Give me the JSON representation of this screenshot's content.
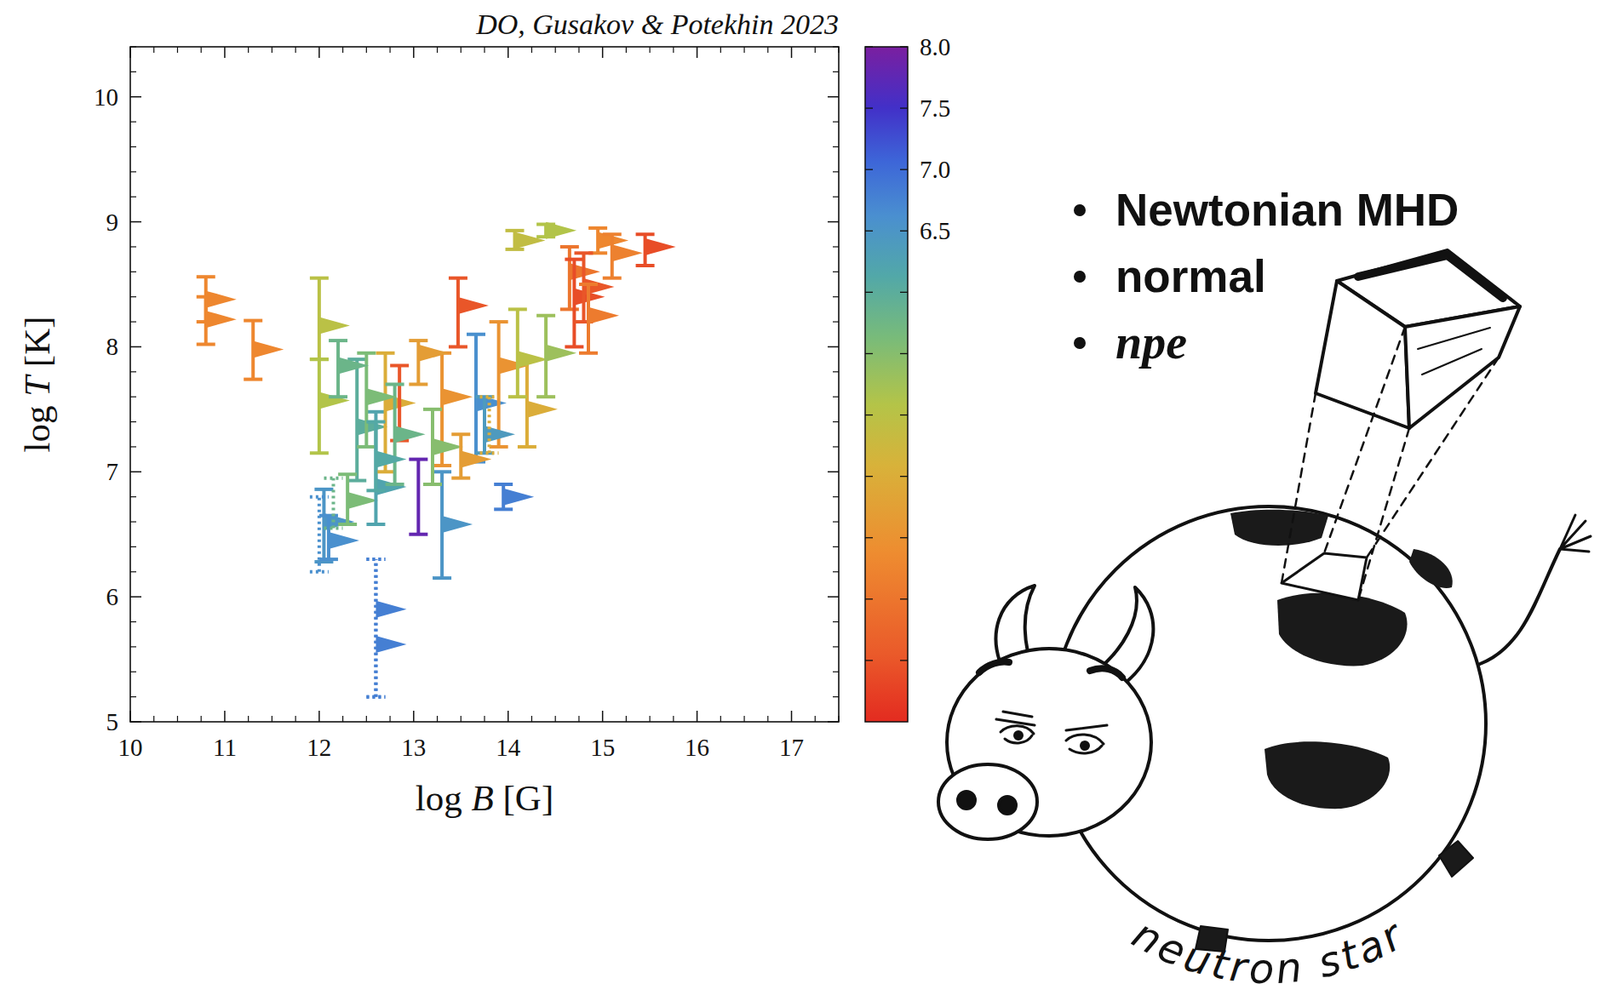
{
  "chart_data": {
    "type": "scatter",
    "title": "DO, Gusakov & Potekhin 2023",
    "x_label": "log B [G]",
    "y_label": "log T [K]",
    "xlim": [
      10,
      17.5
    ],
    "ylim": [
      5,
      10.4
    ],
    "xticks": [
      10,
      11,
      12,
      13,
      14,
      15,
      16,
      17
    ],
    "yticks": [
      5,
      6,
      7,
      8,
      9,
      10
    ],
    "marker": "triangle",
    "colorbar": {
      "range": [
        2.5,
        8
      ],
      "ticks": [
        6.5,
        {
          "value": 7,
          "label": "7.0"
        },
        7.5,
        {
          "value": 8,
          "label": "8.0"
        }
      ],
      "minor_ticks": [
        3,
        3.5,
        4,
        4.5,
        5,
        5.5,
        6
      ]
    },
    "series": [
      {
        "line_style": "solid",
        "x": [
          10.8,
          10.8,
          11.3,
          12.0,
          12.0,
          12.05,
          12.1,
          12.4,
          12.3,
          12.6,
          12.7,
          12.85,
          13.05,
          13.3,
          13.3,
          13.66,
          13.95,
          13.47,
          13.9,
          14.2,
          14.1,
          14.4,
          14.07,
          14.4,
          14.65,
          14.7,
          14.95,
          15.1,
          15.45,
          14.8,
          14.85,
          13.05,
          13.75,
          12.8,
          12.5,
          12.6,
          13.2,
          13.5,
          12.2
        ],
        "values": [
          8.38,
          8.22,
          7.98,
          8.17,
          7.57,
          6.6,
          6.45,
          7.36,
          6.77,
          6.88,
          7.55,
          7.55,
          6.8,
          7.6,
          6.58,
          7.55,
          6.8,
          8.33,
          7.85,
          7.5,
          7.9,
          7.95,
          8.85,
          8.93,
          8.6,
          8.4,
          8.85,
          8.75,
          8.8,
          8.48,
          8.25,
          7.95,
          7.3,
          7.3,
          7.6,
          7.1,
          7.2,
          7.1,
          7.85
        ],
        "t_low": [
          8.2,
          8.02,
          7.74,
          7.9,
          7.15,
          6.28,
          6.3,
          6.93,
          6.58,
          6.58,
          7.0,
          7.25,
          6.5,
          7.05,
          6.15,
          7.08,
          6.7,
          8.0,
          7.2,
          7.2,
          7.6,
          7.6,
          8.78,
          8.88,
          8.3,
          8.0,
          8.75,
          8.55,
          8.65,
          8.2,
          7.95,
          7.7,
          7.15,
          6.9,
          7.2,
          6.85,
          6.9,
          6.95,
          7.6
        ],
        "t_high": [
          8.56,
          8.4,
          8.21,
          8.55,
          7.9,
          6.86,
          6.65,
          7.9,
          6.98,
          7.48,
          7.95,
          7.85,
          7.1,
          7.95,
          7.0,
          8.1,
          6.9,
          8.55,
          8.2,
          7.9,
          8.3,
          8.25,
          8.93,
          8.98,
          8.8,
          8.7,
          8.95,
          8.9,
          8.9,
          8.75,
          8.5,
          8.05,
          7.6,
          7.7,
          7.95,
          7.4,
          7.5,
          7.3,
          8.05
        ],
        "color_values": [
          3.8,
          3.8,
          3.8,
          5.0,
          5.1,
          6.5,
          6.6,
          6.0,
          5.6,
          6.2,
          4.5,
          3.0,
          7.8,
          4.0,
          6.5,
          6.6,
          6.8,
          3.0,
          4.0,
          4.5,
          5.0,
          5.3,
          4.9,
          5.1,
          3.5,
          2.9,
          3.8,
          3.7,
          2.9,
          3.0,
          3.6,
          4.2,
          6.4,
          5.8,
          5.6,
          6.1,
          5.5,
          4.2,
          5.8
        ],
        "b_lower_limit": [
          true,
          true,
          true,
          true,
          true,
          true,
          true,
          true,
          true,
          true,
          true,
          false,
          false,
          true,
          true,
          true,
          true,
          true,
          true,
          true,
          true,
          true,
          true,
          true,
          true,
          true,
          true,
          true,
          true,
          true,
          true,
          true,
          true,
          true,
          true,
          true,
          true,
          true,
          true
        ]
      },
      {
        "line_style": "dotted",
        "x": [
          12.0,
          12.6,
          12.6,
          13.8,
          12.15
        ],
        "values": [
          6.6,
          5.9,
          5.62,
          7.3,
          6.75
        ],
        "t_low": [
          6.2,
          5.2,
          5.2,
          7.15,
          6.55
        ],
        "t_high": [
          6.8,
          6.3,
          6.3,
          7.6,
          6.95
        ],
        "color_values": [
          6.6,
          6.8,
          6.8,
          4.5,
          5.8
        ],
        "b_lower_limit": [
          false,
          true,
          true,
          false,
          false
        ]
      }
    ]
  },
  "bullets": [
    {
      "text": "Newtonian MHD",
      "font_style": "normal"
    },
    {
      "text": "normal",
      "font_style": "normal"
    },
    {
      "text": "npe",
      "font_style": "italic"
    }
  ],
  "drawing": {
    "label": "neutron star"
  }
}
